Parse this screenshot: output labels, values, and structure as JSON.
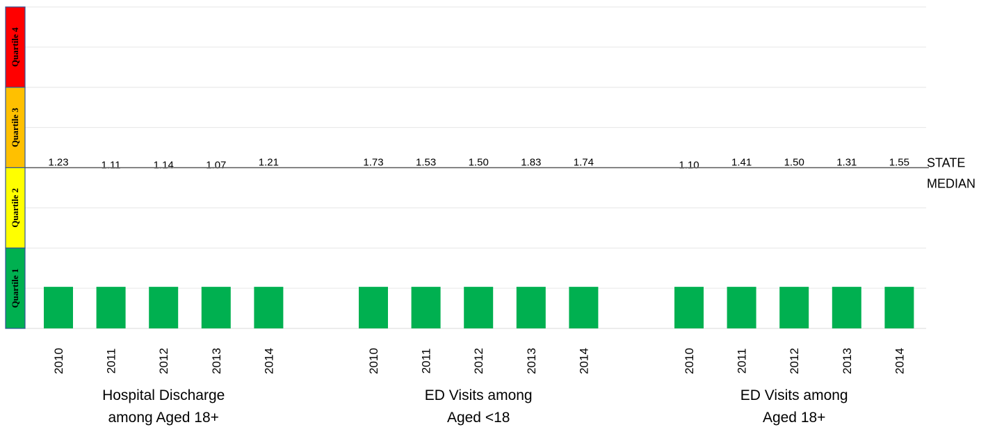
{
  "chart_data": {
    "type": "bar",
    "quartiles": [
      {
        "label": "Quartile 4",
        "color": "#ff0000"
      },
      {
        "label": "Quartile 3",
        "color": "#ffc000"
      },
      {
        "label": "Quartile 2",
        "color": "#ffff00"
      },
      {
        "label": "Quartile 1",
        "color": "#00b050"
      }
    ],
    "bar_color": "#00b050",
    "bar_level": "Quartile 1",
    "median_label_lines": [
      "STATE",
      "MEDIAN"
    ],
    "groups": [
      {
        "label_lines": [
          "Hospital Discharge",
          "among Aged 18+"
        ],
        "categories": [
          "2010",
          "2011",
          "2012",
          "2013",
          "2014"
        ],
        "values": [
          1.23,
          1.11,
          1.14,
          1.07,
          1.21
        ],
        "value_labels": [
          "1.23",
          "1.11",
          "1.14",
          "1.07",
          "1.21"
        ]
      },
      {
        "label_lines": [
          "ED Visits among",
          "Aged <18"
        ],
        "categories": [
          "2010",
          "2011",
          "2012",
          "2013",
          "2014"
        ],
        "values": [
          1.73,
          1.53,
          1.5,
          1.83,
          1.74
        ],
        "value_labels": [
          "1.73",
          "1.53",
          "1.50",
          "1.83",
          "1.74"
        ]
      },
      {
        "label_lines": [
          "ED Visits among",
          "Aged 18+"
        ],
        "categories": [
          "2010",
          "2011",
          "2012",
          "2013",
          "2014"
        ],
        "values": [
          1.1,
          1.41,
          1.5,
          1.31,
          1.55
        ],
        "value_labels": [
          "1.10",
          "1.41",
          "1.50",
          "1.31",
          "1.55"
        ]
      }
    ],
    "grid": true
  }
}
